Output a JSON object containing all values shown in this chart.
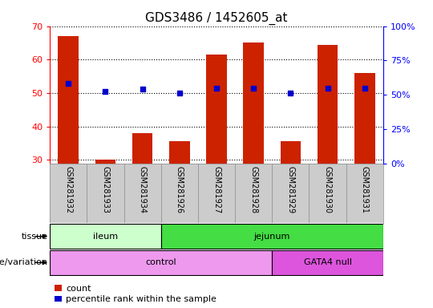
{
  "title": "GDS3486 / 1452605_at",
  "samples": [
    "GSM281932",
    "GSM281933",
    "GSM281934",
    "GSM281926",
    "GSM281927",
    "GSM281928",
    "GSM281929",
    "GSM281930",
    "GSM281931"
  ],
  "counts": [
    67,
    30.2,
    38,
    35.5,
    61.5,
    65,
    35.5,
    64.5,
    56
  ],
  "percentile_ranks": [
    58.5,
    52.5,
    54,
    51.5,
    55,
    55,
    51.5,
    55,
    54.5
  ],
  "ylim_left": [
    29,
    70
  ],
  "ylim_right": [
    0,
    100
  ],
  "yticks_left": [
    30,
    40,
    50,
    60,
    70
  ],
  "yticks_right": [
    0,
    25,
    50,
    75,
    100
  ],
  "ytick_labels_right": [
    "0%",
    "25%",
    "50%",
    "75%",
    "100%"
  ],
  "bar_color": "#CC2200",
  "dot_color": "#0000CC",
  "bar_width": 0.55,
  "tissue_info": [
    {
      "label": "ileum",
      "start": 0,
      "end": 2,
      "color": "#CCFFCC"
    },
    {
      "label": "jejunum",
      "start": 3,
      "end": 8,
      "color": "#44DD44"
    }
  ],
  "genotype_info": [
    {
      "label": "control",
      "start": 0,
      "end": 5,
      "color": "#EE99EE"
    },
    {
      "label": "GATA4 null",
      "start": 6,
      "end": 8,
      "color": "#DD55DD"
    }
  ],
  "tissue_row_label": "tissue",
  "genotype_row_label": "genotype/variation",
  "legend_count_label": "count",
  "legend_pct_label": "percentile rank within the sample",
  "bg_color": "#FFFFFF",
  "sample_bg_color": "#CCCCCC",
  "title_fontsize": 11,
  "tick_fontsize": 8,
  "sample_label_fontsize": 7
}
